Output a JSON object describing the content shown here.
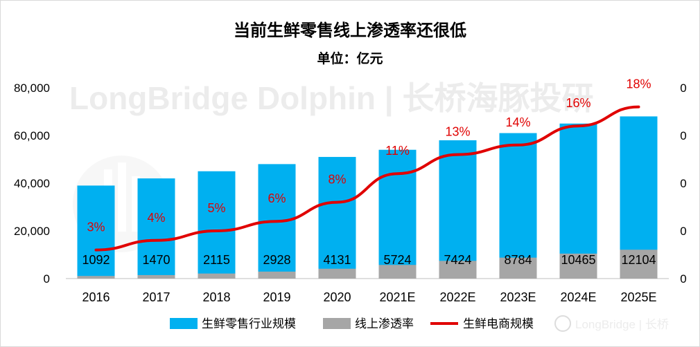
{
  "watermark": {
    "main": "LongBridge Dolphin | 长桥海豚投研",
    "corner": "LongBridge | 长桥"
  },
  "colors": {
    "bar_primary": "#00b0f0",
    "bar_secondary": "#a6a6a6",
    "line": "#e00000",
    "axis": "#bfbfbf"
  },
  "chart_data": {
    "type": "bar",
    "title": "当前生鲜零售线上渗透率还很低",
    "subtitle": "单位：亿元",
    "categories": [
      "2016",
      "2017",
      "2018",
      "2019",
      "2020",
      "2021E",
      "2022E",
      "2023E",
      "2024E",
      "2025E"
    ],
    "series": [
      {
        "name": "生鲜零售行业规模",
        "kind": "bar",
        "values": [
          39000,
          42000,
          45000,
          48000,
          51000,
          54000,
          58000,
          61000,
          65000,
          68000
        ]
      },
      {
        "name": "线上渗透率",
        "kind": "bar",
        "values": [
          1092,
          1470,
          2115,
          2928,
          4131,
          5724,
          7424,
          8784,
          10465,
          12104
        ],
        "labels": [
          "1092",
          "1470",
          "2115",
          "2928",
          "4131",
          "5724",
          "7424",
          "8784",
          "10465",
          "12104"
        ]
      },
      {
        "name": "生鲜电商规模",
        "kind": "line",
        "axis": "right",
        "values": [
          3,
          4,
          5,
          6,
          8,
          11,
          13,
          14,
          16,
          18
        ],
        "labels": [
          "3%",
          "4%",
          "5%",
          "6%",
          "8%",
          "11%",
          "13%",
          "14%",
          "16%",
          "18%"
        ]
      }
    ],
    "ylim": [
      0,
      80000
    ],
    "y_ticks": [
      "0",
      "20,000",
      "40,000",
      "60,000",
      "80,000"
    ],
    "y_tick_values": [
      0,
      20000,
      40000,
      60000,
      80000
    ],
    "y2lim": [
      0,
      20
    ],
    "y2_ticks": [
      "0",
      "0",
      "0",
      "0",
      "0"
    ],
    "legend_position": "bottom",
    "grid": false
  }
}
